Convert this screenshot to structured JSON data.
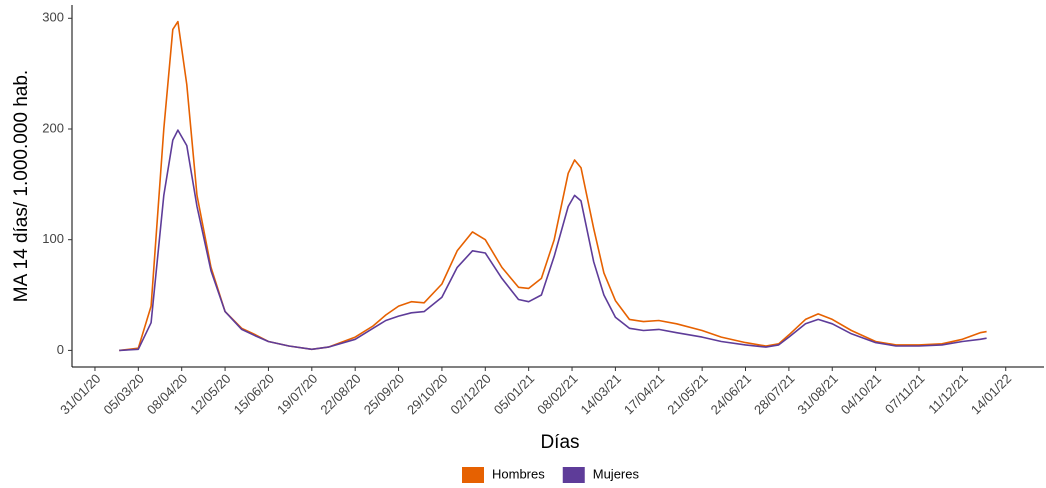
{
  "chart_data": {
    "type": "line",
    "x_label": "Días",
    "y_label": "MA 14 días/ 1.000.000 hab.",
    "x": [
      "19/02/20",
      "05/03/20",
      "15/03/20",
      "25/03/20",
      "01/04/20",
      "05/04/20",
      "12/04/20",
      "20/04/20",
      "01/05/20",
      "12/05/20",
      "25/05/20",
      "05/06/20",
      "15/06/20",
      "01/07/20",
      "19/07/20",
      "01/08/20",
      "22/08/20",
      "05/09/20",
      "15/09/20",
      "25/09/20",
      "05/10/20",
      "15/10/20",
      "29/10/20",
      "10/11/20",
      "22/11/20",
      "02/12/20",
      "15/12/20",
      "28/12/20",
      "05/01/21",
      "15/01/21",
      "25/01/21",
      "05/02/21",
      "10/02/21",
      "15/02/21",
      "25/02/21",
      "05/03/21",
      "14/03/21",
      "25/03/21",
      "05/04/21",
      "17/04/21",
      "01/05/21",
      "21/05/21",
      "05/06/21",
      "24/06/21",
      "10/07/21",
      "20/07/21",
      "28/07/21",
      "10/08/21",
      "20/08/21",
      "31/08/21",
      "15/09/21",
      "04/10/21",
      "20/10/21",
      "07/11/21",
      "25/11/21",
      "11/12/21",
      "25/12/21",
      "30/12/21"
    ],
    "series": [
      {
        "name": "Hombres",
        "color": "#e66101",
        "values": [
          0,
          2,
          40,
          200,
          290,
          297,
          240,
          140,
          75,
          35,
          20,
          14,
          8,
          4,
          1,
          3,
          12,
          22,
          32,
          40,
          44,
          43,
          60,
          90,
          107,
          100,
          75,
          57,
          56,
          65,
          100,
          160,
          172,
          165,
          110,
          70,
          45,
          28,
          26,
          27,
          24,
          18,
          12,
          7,
          4,
          6,
          14,
          28,
          33,
          28,
          18,
          8,
          5,
          5,
          6,
          10,
          16,
          17
        ]
      },
      {
        "name": "Mujeres",
        "color": "#5e3c99",
        "values": [
          0,
          1,
          25,
          140,
          190,
          199,
          185,
          130,
          72,
          35,
          19,
          13,
          8,
          4,
          1,
          3,
          10,
          20,
          27,
          31,
          34,
          35,
          48,
          75,
          90,
          88,
          65,
          46,
          44,
          50,
          85,
          130,
          140,
          135,
          80,
          50,
          30,
          20,
          18,
          19,
          16,
          12,
          8,
          5,
          3,
          5,
          12,
          24,
          28,
          24,
          15,
          7,
          4,
          4,
          5,
          8,
          10,
          11
        ]
      }
    ],
    "xlim": [
      "13/01/20",
      "13/02/22"
    ],
    "xticks": [
      "31/01/20",
      "05/03/20",
      "08/04/20",
      "12/05/20",
      "15/06/20",
      "19/07/20",
      "22/08/20",
      "25/09/20",
      "29/10/20",
      "02/12/20",
      "05/01/21",
      "08/02/21",
      "14/03/21",
      "17/04/21",
      "21/05/21",
      "24/06/21",
      "28/07/21",
      "31/08/21",
      "04/10/21",
      "07/11/21",
      "11/12/21",
      "14/01/22"
    ],
    "ylim": [
      -15,
      312
    ],
    "yticks": [
      0,
      100,
      200,
      300
    ],
    "grid": false,
    "legend": "bottom"
  }
}
